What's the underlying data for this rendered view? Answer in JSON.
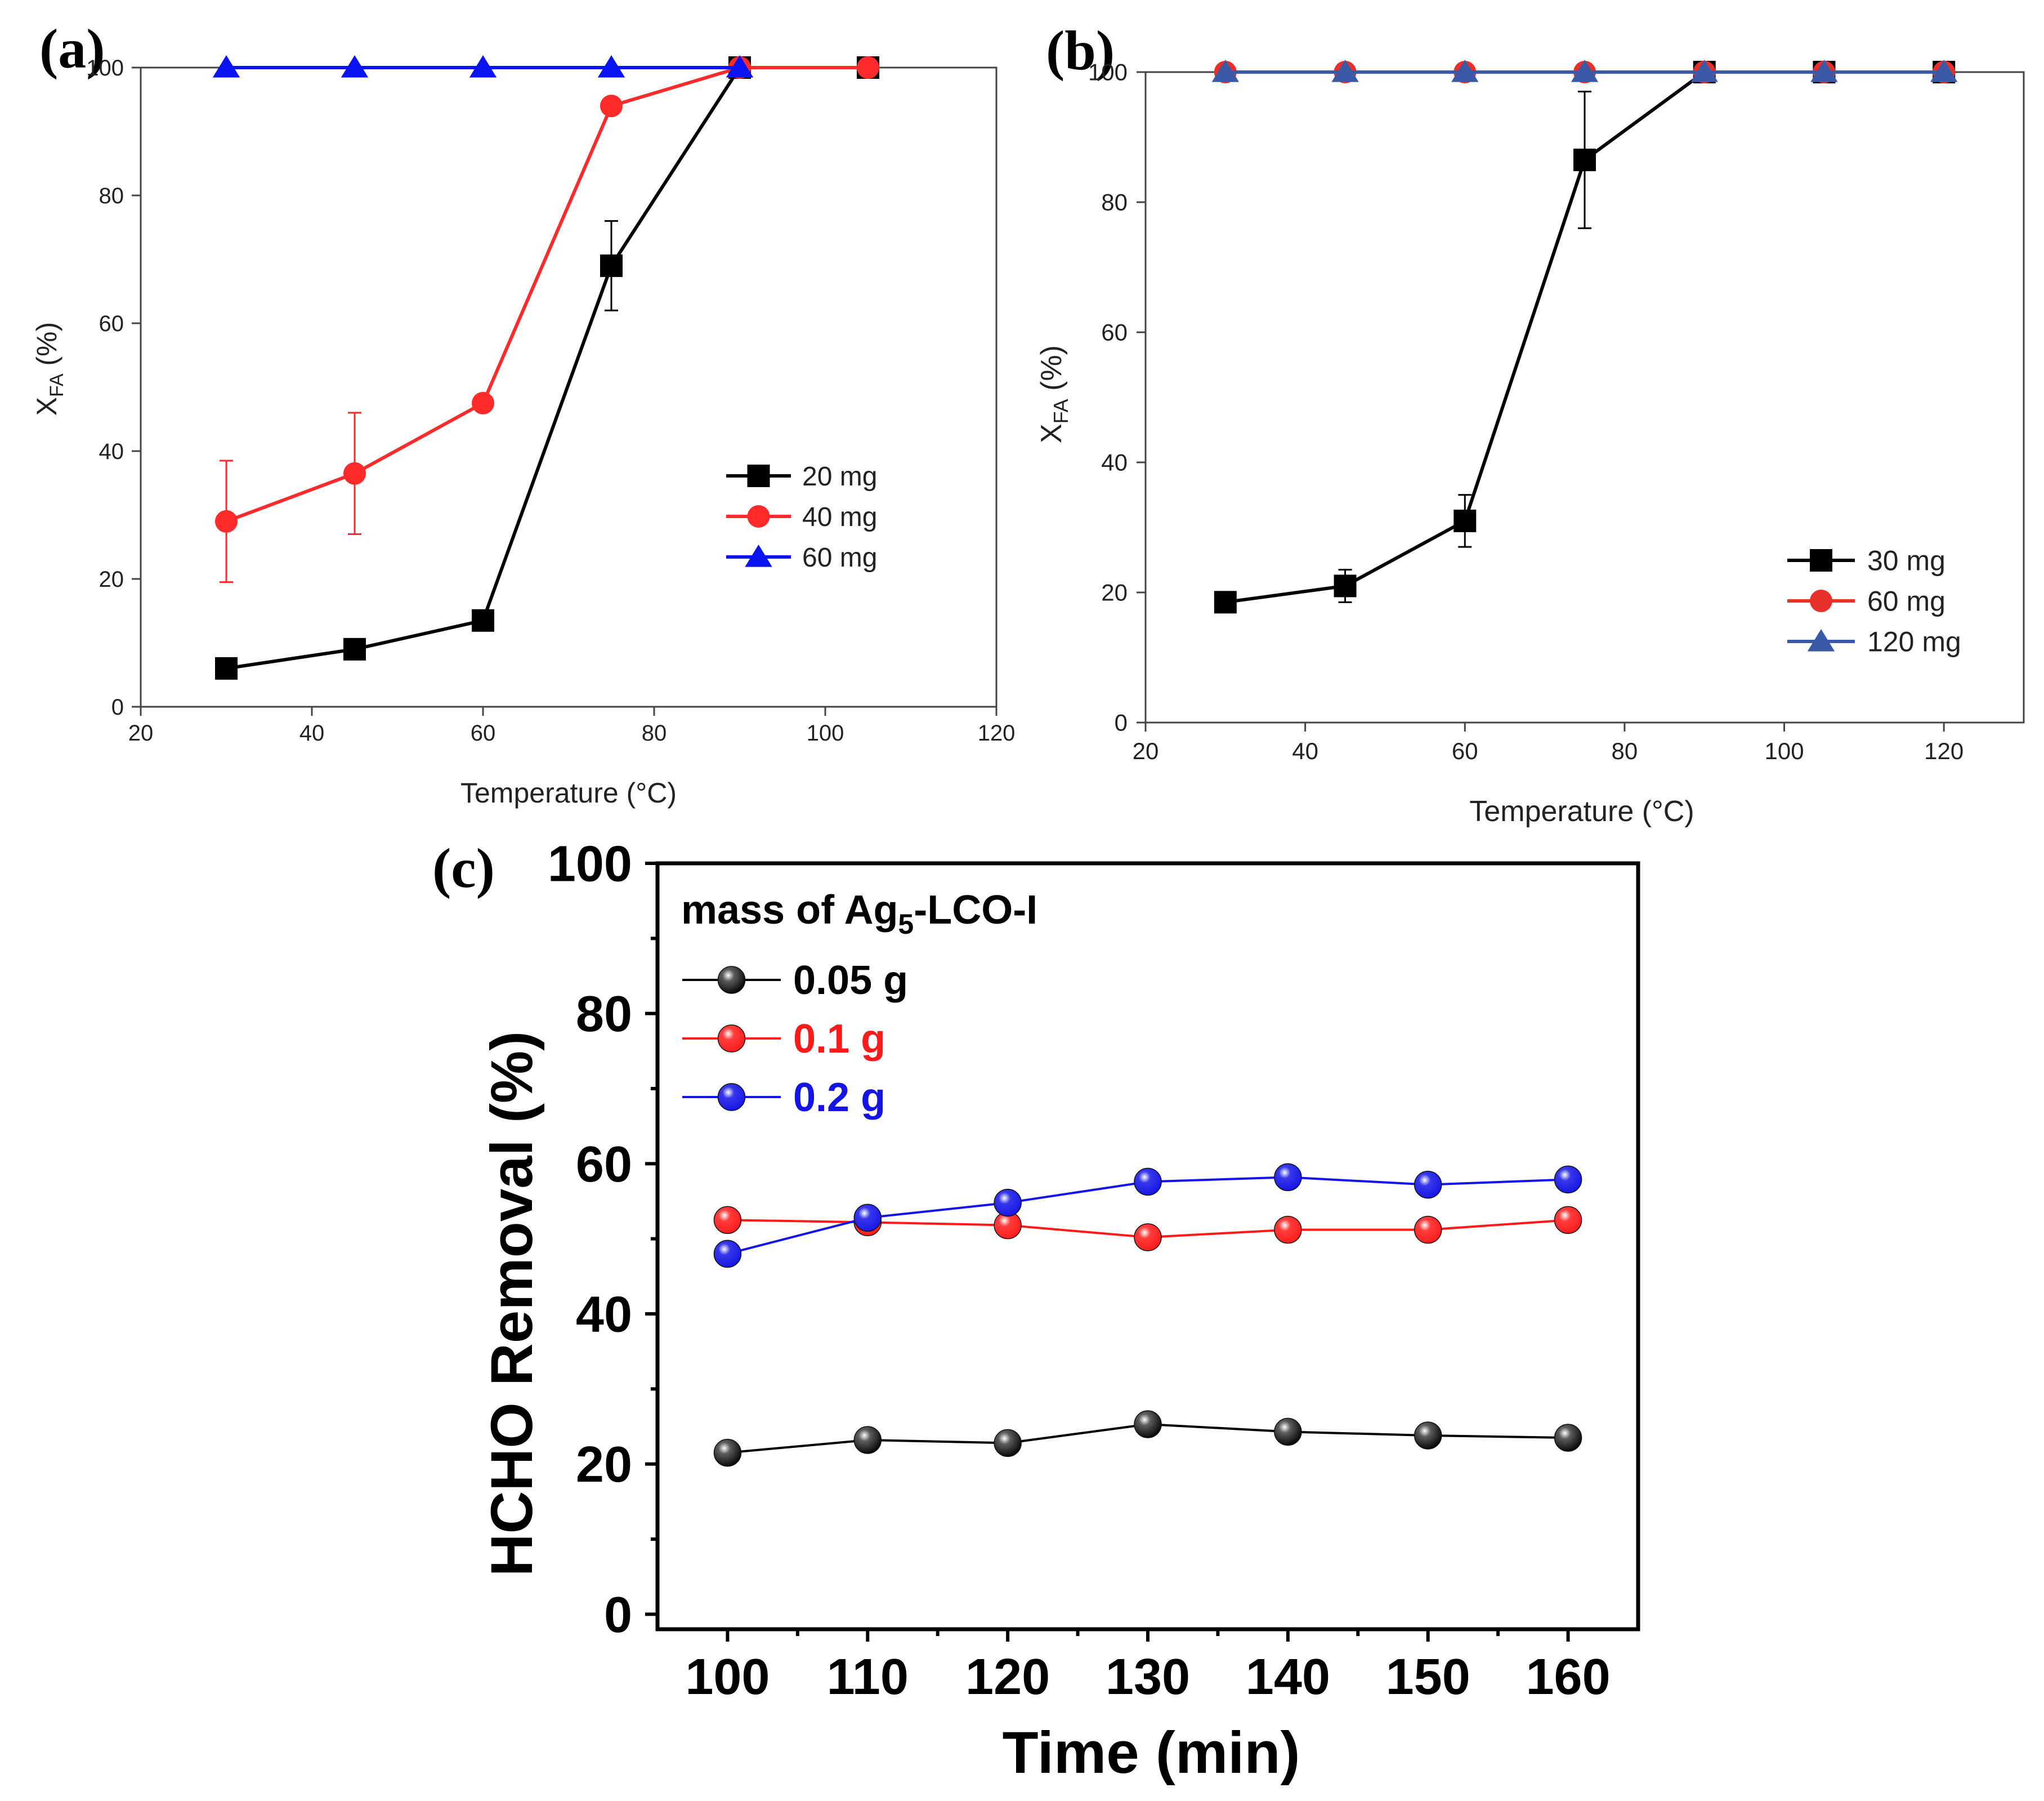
{
  "chart_data": [
    {
      "id": "a",
      "type": "line",
      "panel_label": "(a)",
      "title": "",
      "xlabel": "Temperature (°C)",
      "ylabel_main": "X",
      "ylabel_sub": "FA",
      "ylabel_tail": " (%)",
      "xlim": [
        20,
        120
      ],
      "ylim": [
        0,
        100
      ],
      "x_ticks": [
        "20",
        "40",
        "60",
        "80",
        "100",
        "120"
      ],
      "y_ticks": [
        "0",
        "20",
        "40",
        "60",
        "80",
        "100"
      ],
      "legend_position": "center-right",
      "series": [
        {
          "name": "20 mg",
          "color": "#000000",
          "marker": "square",
          "x": [
            30,
            45,
            60,
            75,
            90,
            105
          ],
          "y": [
            6,
            9,
            13.5,
            69,
            100,
            100
          ],
          "err": [
            0,
            0,
            0,
            7,
            0,
            0
          ]
        },
        {
          "name": "40 mg",
          "color": "#ff2a2a",
          "marker": "circle",
          "x": [
            30,
            45,
            60,
            75,
            90,
            105
          ],
          "y": [
            29,
            36.5,
            47.5,
            94,
            100,
            100
          ],
          "err": [
            9.5,
            9.5,
            0,
            0,
            0,
            0
          ]
        },
        {
          "name": "60 mg",
          "color": "#0a14f0",
          "marker": "triangle",
          "x": [
            30,
            45,
            60,
            75,
            90
          ],
          "y": [
            100,
            100,
            100,
            100,
            100
          ],
          "err": [
            0,
            0,
            0,
            0,
            0
          ]
        }
      ]
    },
    {
      "id": "b",
      "type": "line",
      "panel_label": "(b)",
      "title": "",
      "xlabel": "Temperature (°C)",
      "ylabel_main": "X",
      "ylabel_sub": "FA",
      "ylabel_tail": " (%)",
      "xlim": [
        20,
        130
      ],
      "ylim": [
        0,
        100
      ],
      "x_ticks": [
        "20",
        "40",
        "60",
        "80",
        "100",
        "120"
      ],
      "y_ticks": [
        "0",
        "20",
        "40",
        "60",
        "80",
        "100"
      ],
      "legend_position": "bottom-right",
      "series": [
        {
          "name": "30 mg",
          "color": "#000000",
          "marker": "square",
          "x": [
            30,
            45,
            60,
            75,
            90,
            105,
            120
          ],
          "y": [
            18.5,
            21,
            31,
            86.5,
            100,
            100,
            100
          ],
          "err": [
            0,
            2.5,
            4,
            10.5,
            0,
            0,
            0
          ]
        },
        {
          "name": "60 mg",
          "color": "#e8302a",
          "marker": "circle",
          "x": [
            30,
            45,
            60,
            75,
            90,
            105,
            120
          ],
          "y": [
            100,
            100,
            100,
            100,
            100,
            100,
            100
          ],
          "err": [
            0,
            0,
            0,
            0,
            0,
            0,
            0
          ]
        },
        {
          "name": "120 mg",
          "color": "#3a5aa8",
          "marker": "triangle",
          "x": [
            30,
            45,
            60,
            75,
            90,
            105,
            120
          ],
          "y": [
            100,
            100,
            100,
            100,
            100,
            100,
            100
          ],
          "err": [
            0,
            0,
            0,
            0,
            0,
            0,
            0
          ]
        }
      ]
    },
    {
      "id": "c",
      "type": "line",
      "panel_label": "(c)",
      "title": "",
      "xlabel": "Time (min)",
      "ylabel": "HCHO Removal (%)",
      "legend_title_pre": "mass of Ag",
      "legend_title_sub": "5",
      "legend_title_post": "-LCO-I",
      "xlim": [
        95,
        165
      ],
      "ylim": [
        -2,
        100
      ],
      "x_ticks": [
        "100",
        "110",
        "120",
        "130",
        "140",
        "150",
        "160"
      ],
      "y_ticks": [
        "0",
        "20",
        "40",
        "60",
        "80",
        "100"
      ],
      "legend_position": "top-left",
      "series": [
        {
          "name": "0.05 g",
          "color": "#000000",
          "marker": "sphere",
          "x": [
            100,
            110,
            120,
            130,
            140,
            150,
            160
          ],
          "y": [
            21.5,
            23.2,
            22.8,
            25.3,
            24.3,
            23.8,
            23.5
          ]
        },
        {
          "name": "0.1 g",
          "color": "#ff1a1a",
          "marker": "sphere",
          "x": [
            100,
            110,
            120,
            130,
            140,
            150,
            160
          ],
          "y": [
            52.5,
            52.2,
            51.8,
            50.2,
            51.2,
            51.2,
            52.5
          ]
        },
        {
          "name": "0.2 g",
          "color": "#1414e6",
          "marker": "sphere",
          "x": [
            100,
            110,
            120,
            130,
            140,
            150,
            160
          ],
          "y": [
            48,
            52.8,
            54.8,
            57.6,
            58.2,
            57.2,
            57.9
          ]
        }
      ]
    }
  ]
}
